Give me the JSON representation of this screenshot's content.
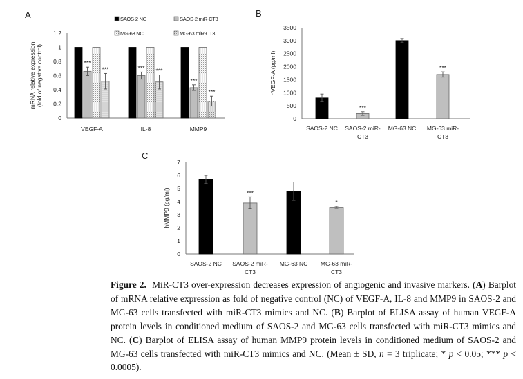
{
  "chart_data": [
    {
      "panel": "A",
      "type": "bar",
      "ylabel": [
        "mRNA relative expression",
        "(fold of negative control)"
      ],
      "ylim": [
        0,
        1.2
      ],
      "yticks": [
        "0",
        "0.2",
        "0.4",
        "0.6",
        "0.8",
        "1",
        "1.2"
      ],
      "categories": [
        "VEGF-A",
        "IL-8",
        "MMP9"
      ],
      "legend_position": "top",
      "series": [
        {
          "name": "SAOS-2 NC",
          "values": [
            1,
            1,
            1
          ],
          "errors": [
            0,
            0,
            0
          ],
          "stars": [
            "",
            "",
            ""
          ],
          "fill": "#000000"
        },
        {
          "name": "SAOS-2 miR-CT3",
          "values": [
            0.66,
            0.6,
            0.43
          ],
          "errors": [
            0.06,
            0.05,
            0.04
          ],
          "stars": [
            "***",
            "***",
            "***"
          ],
          "fill": "#bdbdbd"
        },
        {
          "name": "MG-63 NC",
          "values": [
            1,
            1,
            1
          ],
          "errors": [
            0,
            0,
            0
          ],
          "stars": [
            "",
            "",
            ""
          ],
          "fill": "pattern-dots-white"
        },
        {
          "name": "MG-63 miR-CT3",
          "values": [
            0.52,
            0.51,
            0.24
          ],
          "errors": [
            0.11,
            0.1,
            0.07
          ],
          "stars": [
            "***",
            "***",
            "***"
          ],
          "fill": "pattern-dots-grey"
        }
      ]
    },
    {
      "panel": "B",
      "type": "bar",
      "ylabel": [
        "hVEGF-A (pg/ml)"
      ],
      "ylim": [
        0,
        3500
      ],
      "yticks": [
        "0",
        "500",
        "1000",
        "1500",
        "2000",
        "2500",
        "3000",
        "3500"
      ],
      "categories": [
        [
          "SAOS-2 NC"
        ],
        [
          "SAOS-2 miR-",
          "CT3"
        ],
        [
          "MG-63 NC"
        ],
        [
          "MG-63 miR-",
          "CT3"
        ]
      ],
      "values": [
        800,
        200,
        3000,
        1700
      ],
      "errors": [
        150,
        70,
        80,
        100
      ],
      "stars": [
        "",
        "***",
        "",
        "***"
      ],
      "fills": [
        "#000000",
        "#bfbfbf",
        "#000000",
        "#bfbfbf"
      ]
    },
    {
      "panel": "C",
      "type": "bar",
      "ylabel": [
        "hMMP9 (pg/ml)"
      ],
      "ylim": [
        0,
        7
      ],
      "yticks": [
        "0",
        "1",
        "2",
        "3",
        "4",
        "5",
        "6",
        "7"
      ],
      "categories": [
        [
          "SAOS-2 NC"
        ],
        [
          "SAOS-2 miR-",
          "CT3"
        ],
        [
          "MG-63 NC"
        ],
        [
          "MG-63 miR-",
          "CT3"
        ]
      ],
      "values": [
        5.7,
        3.9,
        4.8,
        3.55
      ],
      "errors": [
        0.3,
        0.45,
        0.7,
        0.08
      ],
      "stars": [
        "",
        "***",
        "",
        "*"
      ],
      "fills": [
        "#000000",
        "#bfbfbf",
        "#000000",
        "#bfbfbf"
      ]
    }
  ],
  "caption": {
    "label": "Figure 2.",
    "title": "MiR-CT3 over-expression decreases expression of angiogenic and invasive markers.",
    "body": [
      {
        "t": "("
      },
      {
        "t": "A",
        "b": true
      },
      {
        "t": ") Barplot of mRNA relative expression as fold of negative control (NC) of VEGF-A, IL-8 and MMP9 in SAOS-2 and MG-63 cells transfected with miR-CT3 mimics and NC. ("
      },
      {
        "t": "B",
        "b": true
      },
      {
        "t": ") Barplot of ELISA assay of human VEGF-A protein levels in conditioned medium of SAOS-2 and MG-63 cells transfected with miR-CT3 mimics and NC. ("
      },
      {
        "t": "C",
        "b": true
      },
      {
        "t": ") Barplot of ELISA assay of human MMP9 protein levels in conditioned medium of SAOS-2 and MG-63 cells transfected with miR-CT3 mimics and NC. (Mean ± SD, "
      },
      {
        "t": "n",
        "i": true
      },
      {
        "t": " = 3 triplicate; * "
      },
      {
        "t": "p",
        "i": true
      },
      {
        "t": " < 0.05; *** "
      },
      {
        "t": "p",
        "i": true
      },
      {
        "t": " < 0.0005)."
      }
    ]
  }
}
